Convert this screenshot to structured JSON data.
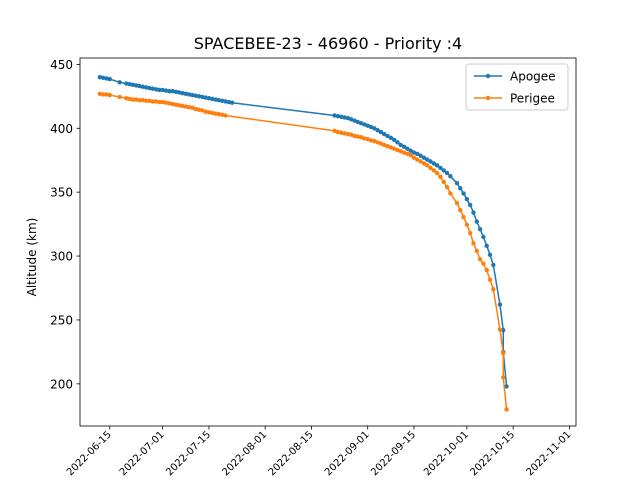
{
  "chart_data": {
    "type": "line",
    "title": "SPACEBEE-23 - 46960 - Priority :4",
    "xlabel": "",
    "ylabel": "Altitude (km)",
    "xlim": [
      "2022-06-06",
      "2022-11-03"
    ],
    "ylim": [
      167,
      455
    ],
    "x_ticks": [
      "2022-06-15",
      "2022-07-01",
      "2022-07-15",
      "2022-08-01",
      "2022-08-15",
      "2022-09-01",
      "2022-09-15",
      "2022-10-01",
      "2022-10-15",
      "2022-11-01"
    ],
    "y_ticks": [
      200,
      250,
      300,
      350,
      400,
      450
    ],
    "grid": false,
    "legend_position": "upper right",
    "series": [
      {
        "name": "Apogee",
        "color": "#1f77b4",
        "points": [
          [
            "2022-06-12",
            440
          ],
          [
            "2022-06-13",
            439.5
          ],
          [
            "2022-06-14",
            439
          ],
          [
            "2022-06-15",
            438.5
          ],
          [
            "2022-06-18",
            436
          ],
          [
            "2022-06-20",
            435
          ],
          [
            "2022-06-21",
            434.5
          ],
          [
            "2022-06-22",
            434
          ],
          [
            "2022-06-23",
            433.5
          ],
          [
            "2022-06-24",
            433
          ],
          [
            "2022-06-25",
            432.5
          ],
          [
            "2022-06-26",
            432
          ],
          [
            "2022-06-27",
            431.5
          ],
          [
            "2022-06-28",
            431
          ],
          [
            "2022-06-29",
            430.5
          ],
          [
            "2022-06-30",
            430
          ],
          [
            "2022-07-01",
            430
          ],
          [
            "2022-07-02",
            429.5
          ],
          [
            "2022-07-03",
            429
          ],
          [
            "2022-07-04",
            429
          ],
          [
            "2022-07-05",
            428.5
          ],
          [
            "2022-07-06",
            428
          ],
          [
            "2022-07-07",
            427.5
          ],
          [
            "2022-07-08",
            427
          ],
          [
            "2022-07-09",
            426.5
          ],
          [
            "2022-07-10",
            426
          ],
          [
            "2022-07-11",
            425.5
          ],
          [
            "2022-07-12",
            425
          ],
          [
            "2022-07-13",
            424.5
          ],
          [
            "2022-07-14",
            424
          ],
          [
            "2022-07-15",
            423.5
          ],
          [
            "2022-07-16",
            423
          ],
          [
            "2022-07-17",
            422.5
          ],
          [
            "2022-07-18",
            422
          ],
          [
            "2022-07-19",
            421.5
          ],
          [
            "2022-07-20",
            421
          ],
          [
            "2022-07-21",
            420.5
          ],
          [
            "2022-07-22",
            420
          ],
          [
            "2022-08-22",
            410
          ],
          [
            "2022-08-23",
            409.5
          ],
          [
            "2022-08-24",
            409
          ],
          [
            "2022-08-25",
            408.5
          ],
          [
            "2022-08-26",
            408
          ],
          [
            "2022-08-27",
            407
          ],
          [
            "2022-08-28",
            406
          ],
          [
            "2022-08-29",
            405
          ],
          [
            "2022-08-30",
            404
          ],
          [
            "2022-08-31",
            403
          ],
          [
            "2022-09-01",
            402
          ],
          [
            "2022-09-02",
            401
          ],
          [
            "2022-09-03",
            400
          ],
          [
            "2022-09-04",
            398.5
          ],
          [
            "2022-09-05",
            397
          ],
          [
            "2022-09-06",
            395.5
          ],
          [
            "2022-09-07",
            394
          ],
          [
            "2022-09-08",
            392.5
          ],
          [
            "2022-09-09",
            391
          ],
          [
            "2022-09-10",
            389
          ],
          [
            "2022-09-11",
            387
          ],
          [
            "2022-09-12",
            385.5
          ],
          [
            "2022-09-13",
            384
          ],
          [
            "2022-09-14",
            382.5
          ],
          [
            "2022-09-15",
            381
          ],
          [
            "2022-09-16",
            380
          ],
          [
            "2022-09-17",
            378.5
          ],
          [
            "2022-09-18",
            377
          ],
          [
            "2022-09-19",
            375.5
          ],
          [
            "2022-09-20",
            374
          ],
          [
            "2022-09-21",
            372.5
          ],
          [
            "2022-09-22",
            371
          ],
          [
            "2022-09-23",
            369
          ],
          [
            "2022-09-24",
            367
          ],
          [
            "2022-09-25",
            365
          ],
          [
            "2022-09-26",
            362.5
          ],
          [
            "2022-09-28",
            357
          ],
          [
            "2022-09-29",
            353
          ],
          [
            "2022-09-30",
            349
          ],
          [
            "2022-10-01",
            344.5
          ],
          [
            "2022-10-02",
            340
          ],
          [
            "2022-10-03",
            334
          ],
          [
            "2022-10-04",
            327
          ],
          [
            "2022-10-05",
            321
          ],
          [
            "2022-10-06",
            315
          ],
          [
            "2022-10-07",
            308
          ],
          [
            "2022-10-08",
            301
          ],
          [
            "2022-10-09",
            293
          ],
          [
            "2022-10-11",
            262
          ],
          [
            "2022-10-12",
            242
          ],
          [
            "2022-10-12",
            225
          ],
          [
            "2022-10-13",
            198
          ]
        ]
      },
      {
        "name": "Perigee",
        "color": "#ff7f0e",
        "points": [
          [
            "2022-06-12",
            427
          ],
          [
            "2022-06-13",
            426.5
          ],
          [
            "2022-06-14",
            426.5
          ],
          [
            "2022-06-15",
            426
          ],
          [
            "2022-06-18",
            424.5
          ],
          [
            "2022-06-20",
            423.5
          ],
          [
            "2022-06-21",
            423
          ],
          [
            "2022-06-22",
            422.5
          ],
          [
            "2022-06-23",
            422.5
          ],
          [
            "2022-06-24",
            422
          ],
          [
            "2022-06-25",
            422
          ],
          [
            "2022-06-26",
            421.5
          ],
          [
            "2022-06-27",
            421.5
          ],
          [
            "2022-06-28",
            421
          ],
          [
            "2022-06-29",
            421
          ],
          [
            "2022-06-30",
            420.5
          ],
          [
            "2022-07-01",
            420.5
          ],
          [
            "2022-07-02",
            420
          ],
          [
            "2022-07-03",
            419.5
          ],
          [
            "2022-07-04",
            419
          ],
          [
            "2022-07-05",
            418.5
          ],
          [
            "2022-07-06",
            418
          ],
          [
            "2022-07-07",
            417.5
          ],
          [
            "2022-07-08",
            417
          ],
          [
            "2022-07-09",
            416.5
          ],
          [
            "2022-07-10",
            416
          ],
          [
            "2022-07-11",
            415
          ],
          [
            "2022-07-12",
            414.5
          ],
          [
            "2022-07-13",
            414
          ],
          [
            "2022-07-14",
            413
          ],
          [
            "2022-07-15",
            412.5
          ],
          [
            "2022-07-16",
            412
          ],
          [
            "2022-07-17",
            411.5
          ],
          [
            "2022-07-18",
            411
          ],
          [
            "2022-07-19",
            410.5
          ],
          [
            "2022-07-20",
            410
          ],
          [
            "2022-08-22",
            398
          ],
          [
            "2022-08-23",
            397
          ],
          [
            "2022-08-24",
            396.5
          ],
          [
            "2022-08-25",
            396
          ],
          [
            "2022-08-26",
            395.5
          ],
          [
            "2022-08-27",
            395
          ],
          [
            "2022-08-28",
            394
          ],
          [
            "2022-08-29",
            393.5
          ],
          [
            "2022-08-30",
            393
          ],
          [
            "2022-08-31",
            392
          ],
          [
            "2022-09-01",
            391.5
          ],
          [
            "2022-09-02",
            390.5
          ],
          [
            "2022-09-03",
            390
          ],
          [
            "2022-09-04",
            389
          ],
          [
            "2022-09-05",
            388
          ],
          [
            "2022-09-06",
            387
          ],
          [
            "2022-09-07",
            386
          ],
          [
            "2022-09-08",
            385
          ],
          [
            "2022-09-09",
            384
          ],
          [
            "2022-09-10",
            383
          ],
          [
            "2022-09-11",
            382
          ],
          [
            "2022-09-12",
            381
          ],
          [
            "2022-09-13",
            380
          ],
          [
            "2022-09-14",
            379
          ],
          [
            "2022-09-15",
            377
          ],
          [
            "2022-09-16",
            375.5
          ],
          [
            "2022-09-17",
            374
          ],
          [
            "2022-09-18",
            372.5
          ],
          [
            "2022-09-19",
            371
          ],
          [
            "2022-09-20",
            369
          ],
          [
            "2022-09-21",
            367
          ],
          [
            "2022-09-22",
            365
          ],
          [
            "2022-09-23",
            362
          ],
          [
            "2022-09-24",
            358
          ],
          [
            "2022-09-25",
            354
          ],
          [
            "2022-09-26",
            349
          ],
          [
            "2022-09-28",
            341.5
          ],
          [
            "2022-09-29",
            336
          ],
          [
            "2022-09-30",
            330.5
          ],
          [
            "2022-10-01",
            324.5
          ],
          [
            "2022-10-02",
            318
          ],
          [
            "2022-10-03",
            310
          ],
          [
            "2022-10-04",
            304
          ],
          [
            "2022-10-05",
            297.5
          ],
          [
            "2022-10-06",
            294
          ],
          [
            "2022-10-07",
            289
          ],
          [
            "2022-10-08",
            281.5
          ],
          [
            "2022-10-09",
            274
          ],
          [
            "2022-10-11",
            242.5
          ],
          [
            "2022-10-12",
            224
          ],
          [
            "2022-10-12",
            205
          ],
          [
            "2022-10-13",
            180
          ]
        ]
      }
    ]
  }
}
